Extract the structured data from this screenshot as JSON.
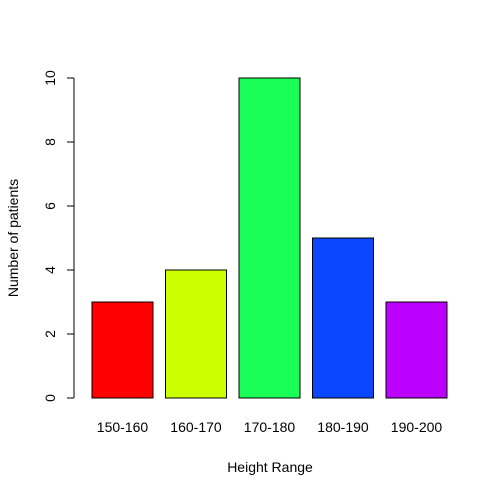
{
  "chart_data": {
    "type": "bar",
    "title": "",
    "xlabel": "Height Range",
    "ylabel": "Number of patients",
    "categories": [
      "150-160",
      "160-170",
      "170-180",
      "180-190",
      "190-200"
    ],
    "values": [
      3,
      4,
      10,
      5,
      3
    ],
    "colors": [
      "#FF0000",
      "#CCFF00",
      "#1AFF57",
      "#0A47FF",
      "#BB00FF"
    ],
    "ylim": [
      0,
      10
    ],
    "yticks": [
      0,
      2,
      4,
      6,
      8,
      10
    ],
    "grid": false,
    "legend": "none"
  }
}
